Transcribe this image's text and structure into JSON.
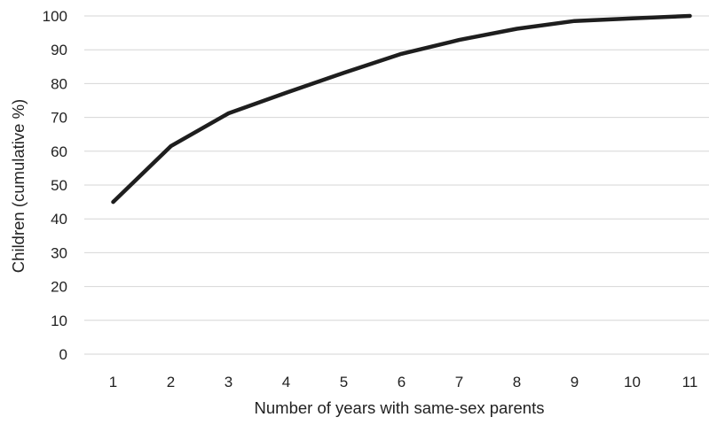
{
  "chart_data": {
    "type": "line",
    "title": "",
    "xlabel": "Number of years with same-sex parents",
    "ylabel": "Children (cumulative %)",
    "x": [
      1,
      2,
      3,
      4,
      5,
      6,
      7,
      8,
      9,
      10,
      11
    ],
    "x_tick_labels": [
      "1",
      "2",
      "3",
      "4",
      "5",
      "6",
      "7",
      "8",
      "9",
      "10",
      "11"
    ],
    "y_tick_labels": [
      "0",
      "10",
      "20",
      "30",
      "40",
      "50",
      "60",
      "70",
      "80",
      "90",
      "100"
    ],
    "ylim": [
      0,
      100
    ],
    "y_tick_step": 10,
    "grid": "horizontal",
    "legend": "none",
    "series": [
      {
        "values": [
          45,
          61.5,
          71.2,
          77.3,
          83.2,
          88.8,
          92.9,
          96.2,
          98.5,
          99.3,
          100
        ]
      }
    ],
    "colors": {
      "line": "#1e1e1e",
      "grid": "#d6d6d6",
      "text": "#222222"
    }
  }
}
